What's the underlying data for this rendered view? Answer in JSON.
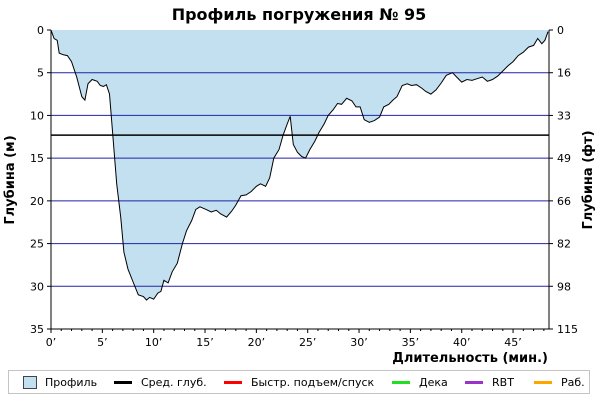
{
  "chart_data": {
    "type": "area",
    "title": "Профиль погружения № 95",
    "xlabel": "Длительность (мин.)",
    "ylabel_left": "Глубина (м)",
    "ylabel_right": "Глубина (фт)",
    "x_ticks": [
      {
        "value": 0,
        "label": "0’"
      },
      {
        "value": 5,
        "label": "5’"
      },
      {
        "value": 10,
        "label": "10’"
      },
      {
        "value": 15,
        "label": "15’"
      },
      {
        "value": 20,
        "label": "20’"
      },
      {
        "value": 25,
        "label": "25’"
      },
      {
        "value": 30,
        "label": "30’"
      },
      {
        "value": 35,
        "label": "35’"
      },
      {
        "value": 40,
        "label": "40’"
      },
      {
        "value": 45,
        "label": "45’"
      }
    ],
    "y_left_ticks": [
      0,
      5,
      10,
      15,
      20,
      25,
      30,
      35
    ],
    "y_right_ticks": [
      {
        "depth_m": 0,
        "label": "0"
      },
      {
        "depth_m": 5,
        "label": "16"
      },
      {
        "depth_m": 10,
        "label": "33"
      },
      {
        "depth_m": 15,
        "label": "49"
      },
      {
        "depth_m": 20,
        "label": "66"
      },
      {
        "depth_m": 25,
        "label": "82"
      },
      {
        "depth_m": 30,
        "label": "98"
      },
      {
        "depth_m": 35,
        "label": "115"
      }
    ],
    "xlim": [
      0,
      48.5
    ],
    "ylim": [
      0,
      35
    ],
    "y_inverted": true,
    "grid_lines": [
      5,
      10,
      15,
      20,
      25,
      30
    ],
    "avg_depth": 12.3,
    "series": [
      {
        "name": "Профиль",
        "points": [
          [
            0,
            0
          ],
          [
            0.3,
            1.0
          ],
          [
            0.6,
            1.2
          ],
          [
            0.8,
            2.7
          ],
          [
            1.2,
            2.9
          ],
          [
            1.6,
            3.0
          ],
          [
            2.0,
            3.7
          ],
          [
            2.5,
            5.5
          ],
          [
            3.0,
            7.8
          ],
          [
            3.3,
            8.2
          ],
          [
            3.6,
            6.3
          ],
          [
            4.0,
            5.8
          ],
          [
            4.5,
            6.0
          ],
          [
            4.8,
            6.5
          ],
          [
            5.1,
            6.6
          ],
          [
            5.4,
            6.4
          ],
          [
            5.7,
            7.5
          ],
          [
            6.0,
            12.0
          ],
          [
            6.4,
            18.0
          ],
          [
            6.8,
            22.0
          ],
          [
            7.1,
            26.0
          ],
          [
            7.5,
            28.0
          ],
          [
            8.0,
            29.5
          ],
          [
            8.5,
            31.0
          ],
          [
            9.0,
            31.2
          ],
          [
            9.3,
            31.6
          ],
          [
            9.6,
            31.3
          ],
          [
            10.0,
            31.5
          ],
          [
            10.4,
            30.8
          ],
          [
            10.7,
            30.6
          ],
          [
            11.0,
            29.3
          ],
          [
            11.4,
            29.6
          ],
          [
            11.8,
            28.3
          ],
          [
            12.3,
            27.3
          ],
          [
            12.8,
            25.0
          ],
          [
            13.2,
            23.5
          ],
          [
            13.7,
            22.3
          ],
          [
            14.1,
            21.0
          ],
          [
            14.5,
            20.7
          ],
          [
            15.1,
            21.0
          ],
          [
            15.6,
            21.3
          ],
          [
            16.1,
            21.1
          ],
          [
            16.5,
            21.5
          ],
          [
            17.1,
            21.9
          ],
          [
            17.6,
            21.2
          ],
          [
            18.0,
            20.5
          ],
          [
            18.5,
            19.4
          ],
          [
            19.0,
            19.3
          ],
          [
            19.5,
            18.9
          ],
          [
            20.0,
            18.3
          ],
          [
            20.4,
            18.0
          ],
          [
            20.9,
            18.3
          ],
          [
            21.3,
            17.3
          ],
          [
            21.7,
            15.0
          ],
          [
            22.2,
            14.0
          ],
          [
            22.6,
            12.3
          ],
          [
            23.0,
            11.0
          ],
          [
            23.3,
            10.1
          ],
          [
            23.6,
            13.4
          ],
          [
            24.0,
            14.3
          ],
          [
            24.4,
            14.8
          ],
          [
            24.8,
            15.0
          ],
          [
            25.2,
            14.0
          ],
          [
            25.7,
            13.0
          ],
          [
            26.1,
            12.0
          ],
          [
            26.6,
            11.0
          ],
          [
            27.0,
            10.0
          ],
          [
            27.5,
            9.3
          ],
          [
            27.9,
            8.6
          ],
          [
            28.3,
            8.7
          ],
          [
            28.8,
            8.0
          ],
          [
            29.3,
            8.3
          ],
          [
            29.7,
            9.0
          ],
          [
            30.1,
            9.0
          ],
          [
            30.5,
            10.5
          ],
          [
            31.0,
            10.8
          ],
          [
            31.5,
            10.6
          ],
          [
            32.0,
            10.2
          ],
          [
            32.4,
            9.0
          ],
          [
            32.9,
            8.7
          ],
          [
            33.3,
            8.2
          ],
          [
            33.7,
            7.8
          ],
          [
            34.2,
            6.5
          ],
          [
            34.7,
            6.3
          ],
          [
            35.1,
            6.5
          ],
          [
            35.6,
            6.4
          ],
          [
            36.1,
            6.8
          ],
          [
            36.5,
            7.2
          ],
          [
            37.0,
            7.5
          ],
          [
            37.5,
            7.0
          ],
          [
            38.0,
            6.2
          ],
          [
            38.5,
            5.3
          ],
          [
            39.1,
            5.0
          ],
          [
            39.5,
            5.5
          ],
          [
            40.0,
            6.1
          ],
          [
            40.5,
            5.8
          ],
          [
            41.0,
            5.9
          ],
          [
            41.5,
            5.7
          ],
          [
            42.0,
            5.5
          ],
          [
            42.5,
            6.0
          ],
          [
            43.0,
            5.8
          ],
          [
            43.5,
            5.4
          ],
          [
            44.0,
            4.8
          ],
          [
            44.5,
            4.2
          ],
          [
            45.0,
            3.7
          ],
          [
            45.5,
            3.0
          ],
          [
            46.0,
            2.6
          ],
          [
            46.5,
            2.0
          ],
          [
            47.0,
            1.8
          ],
          [
            47.4,
            1.0
          ],
          [
            47.8,
            1.6
          ],
          [
            48.1,
            1.2
          ],
          [
            48.4,
            0.2
          ]
        ]
      }
    ],
    "legend": [
      {
        "label": "Профиль",
        "kind": "box",
        "color": "#c3e0f1"
      },
      {
        "label": "Сред. глуб.",
        "kind": "line",
        "color": "#000000"
      },
      {
        "label": "Быстр. подъем/спуск",
        "kind": "line",
        "color": "#ff0000"
      },
      {
        "label": "Дека",
        "kind": "line",
        "color": "#22dd22"
      },
      {
        "label": "RBT",
        "kind": "line",
        "color": "#9933cc"
      },
      {
        "label": "Раб.",
        "kind": "line",
        "color": "#ffa500"
      }
    ],
    "colors": {
      "fill": "#c3e0f1",
      "outline": "#000000",
      "grid": "#2222aa",
      "avg_line": "#000000"
    }
  }
}
